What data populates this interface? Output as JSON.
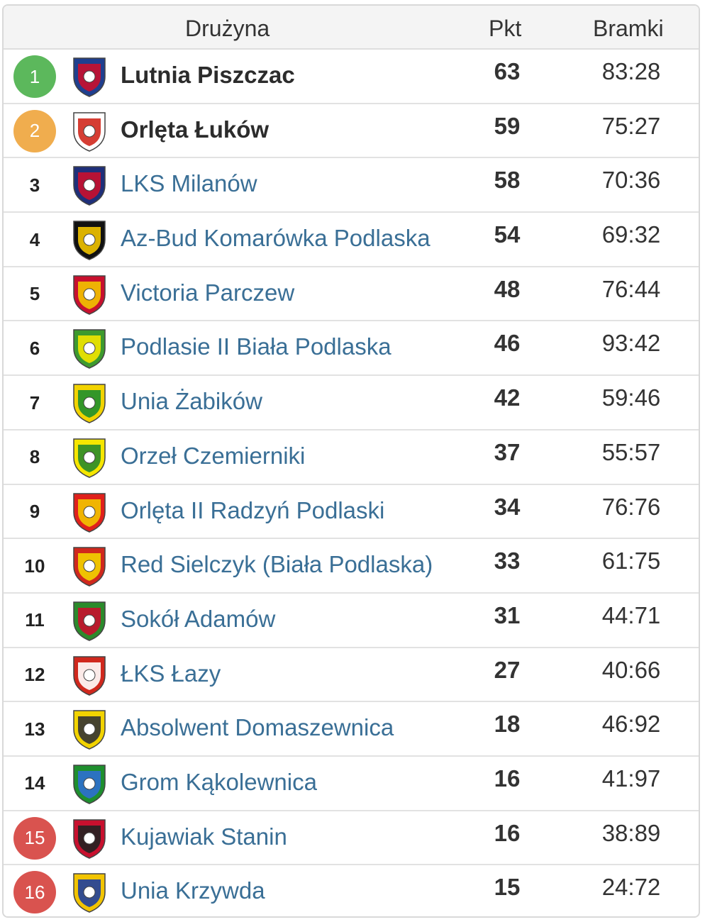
{
  "header": {
    "team": "Drużyna",
    "points": "Pkt",
    "goals": "Bramki"
  },
  "colors": {
    "promotion": "#5cb85c",
    "playoff": "#f0ad4e",
    "relegation": "#d9534f",
    "link": "#3a6f96"
  },
  "rows": [
    {
      "pos": "1",
      "team": "Lutnia Piszczac",
      "pts": "63",
      "goals": "83:28",
      "badge": "promotion",
      "bold": true,
      "crest_colors": [
        "#1f3f8f",
        "#c8102e"
      ],
      "crest_icon": "lutnia-crest-icon"
    },
    {
      "pos": "2",
      "team": "Orlęta Łuków",
      "pts": "59",
      "goals": "75:27",
      "badge": "playoff",
      "bold": true,
      "crest_colors": [
        "#ffffff",
        "#d0281d"
      ],
      "crest_icon": "orleta-lukow-crest-icon"
    },
    {
      "pos": "3",
      "team": "LKS Milanów",
      "pts": "58",
      "goals": "70:36",
      "badge": "",
      "bold": false,
      "crest_colors": [
        "#1e2f7a",
        "#c8102e"
      ],
      "crest_icon": "lks-milanow-crest-icon"
    },
    {
      "pos": "4",
      "team": "Az-Bud Komarówka Podlaska",
      "pts": "54",
      "goals": "69:32",
      "badge": "",
      "bold": false,
      "crest_colors": [
        "#111111",
        "#f2c400"
      ],
      "crest_icon": "az-bud-crest-icon"
    },
    {
      "pos": "5",
      "team": "Victoria Parczew",
      "pts": "48",
      "goals": "76:44",
      "badge": "",
      "bold": false,
      "crest_colors": [
        "#c8102e",
        "#f2c400"
      ],
      "crest_icon": "victoria-crest-icon"
    },
    {
      "pos": "6",
      "team": "Podlasie II Biała Podlaska",
      "pts": "46",
      "goals": "93:42",
      "badge": "",
      "bold": false,
      "crest_colors": [
        "#3d9a2e",
        "#f2e500"
      ],
      "crest_icon": "podlasie-crest-icon"
    },
    {
      "pos": "7",
      "team": "Unia Żabików",
      "pts": "42",
      "goals": "59:46",
      "badge": "",
      "bold": false,
      "crest_colors": [
        "#f2d300",
        "#1e8f2e"
      ],
      "crest_icon": "unia-zabikow-crest-icon"
    },
    {
      "pos": "8",
      "team": "Orzeł Czemierniki",
      "pts": "37",
      "goals": "55:57",
      "badge": "",
      "bold": false,
      "crest_colors": [
        "#f6e600",
        "#2a8a2a"
      ],
      "crest_icon": "orzel-crest-icon"
    },
    {
      "pos": "9",
      "team": "Orlęta II Radzyń Podlaski",
      "pts": "34",
      "goals": "76:76",
      "badge": "",
      "bold": false,
      "crest_colors": [
        "#e0201b",
        "#f2c400"
      ],
      "crest_icon": "orleta-radzyn-crest-icon"
    },
    {
      "pos": "10",
      "team": "Red Sielczyk (Biała Podlaska)",
      "pts": "33",
      "goals": "61:75",
      "badge": "",
      "bold": false,
      "crest_colors": [
        "#d0281d",
        "#f2d300"
      ],
      "crest_icon": "red-sielczyk-crest-icon"
    },
    {
      "pos": "11",
      "team": "Sokół Adamów",
      "pts": "31",
      "goals": "44:71",
      "badge": "",
      "bold": false,
      "crest_colors": [
        "#2b8a2b",
        "#c8102e"
      ],
      "crest_icon": "sokol-crest-icon"
    },
    {
      "pos": "12",
      "team": "ŁKS Łazy",
      "pts": "27",
      "goals": "40:66",
      "badge": "",
      "bold": false,
      "crest_colors": [
        "#d0281d",
        "#ffffff"
      ],
      "crest_icon": "lks-lazy-crest-icon"
    },
    {
      "pos": "13",
      "team": "Absolwent Domaszewnica",
      "pts": "18",
      "goals": "46:92",
      "badge": "",
      "bold": false,
      "crest_colors": [
        "#f2d300",
        "#333333"
      ],
      "crest_icon": "absolwent-crest-icon"
    },
    {
      "pos": "14",
      "team": "Grom Kąkolewnica",
      "pts": "16",
      "goals": "41:97",
      "badge": "",
      "bold": false,
      "crest_colors": [
        "#1e8f2e",
        "#2d6fd0"
      ],
      "crest_icon": "grom-crest-icon"
    },
    {
      "pos": "15",
      "team": "Kujawiak Stanin",
      "pts": "16",
      "goals": "38:89",
      "badge": "relegation",
      "bold": false,
      "crest_colors": [
        "#c8102e",
        "#222222"
      ],
      "crest_icon": "kujawiak-crest-icon"
    },
    {
      "pos": "16",
      "team": "Unia Krzywda",
      "pts": "15",
      "goals": "24:72",
      "badge": "relegation",
      "bold": false,
      "crest_colors": [
        "#f2c400",
        "#1e3f9f"
      ],
      "crest_icon": "unia-krzywda-crest-icon"
    }
  ]
}
